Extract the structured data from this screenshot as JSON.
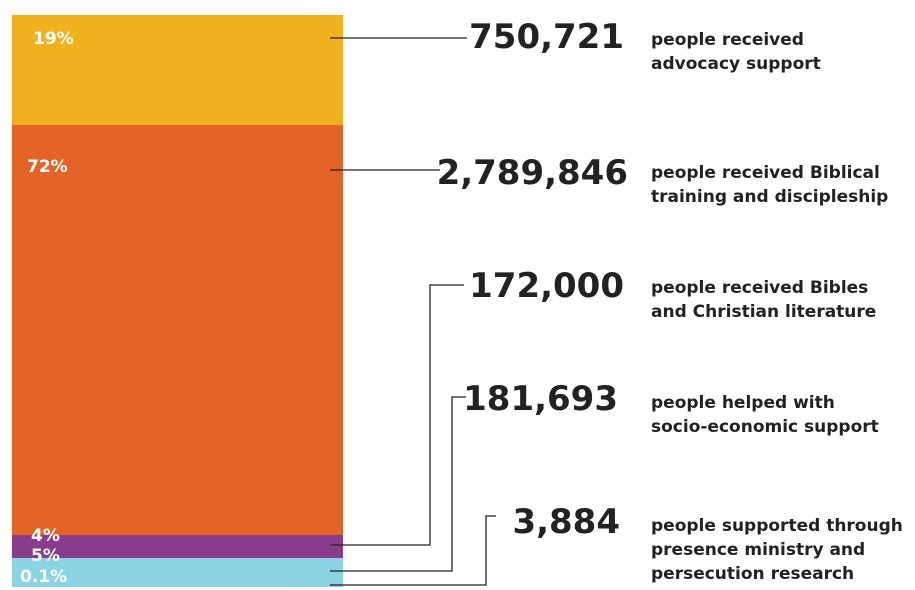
{
  "chart_data": {
    "type": "bar",
    "stacked": true,
    "orientation": "vertical",
    "title": "",
    "xlabel": "",
    "ylabel": "",
    "segments": [
      {
        "percent_label": "19%",
        "percent": 19,
        "color": "#EFB21E",
        "count_label": "750,721",
        "count": 750721,
        "description": [
          "people received",
          "advocacy support"
        ]
      },
      {
        "percent_label": "72%",
        "percent": 72,
        "color": "#E46428",
        "count_label": "2,789,846",
        "count": 2789846,
        "description": [
          "people received Biblical",
          "training and discipleship"
        ]
      },
      {
        "percent_label": "4%",
        "percent": 4,
        "color": "#8A3C8C",
        "count_label": "172,000",
        "count": 172000,
        "description": [
          "people received Bibles",
          "and Christian literature"
        ]
      },
      {
        "percent_label": "5%",
        "percent": 5,
        "color": "#8AD4E4",
        "count_label": "181,693",
        "count": 181693,
        "description": [
          "people helped with",
          "socio-economic support"
        ]
      },
      {
        "percent_label": "0.1%",
        "percent": 0.1,
        "color": "#8AD4E4",
        "count_label": "3,884",
        "count": 3884,
        "description": [
          "people supported through",
          "presence ministry and",
          "persecution research"
        ]
      }
    ]
  }
}
